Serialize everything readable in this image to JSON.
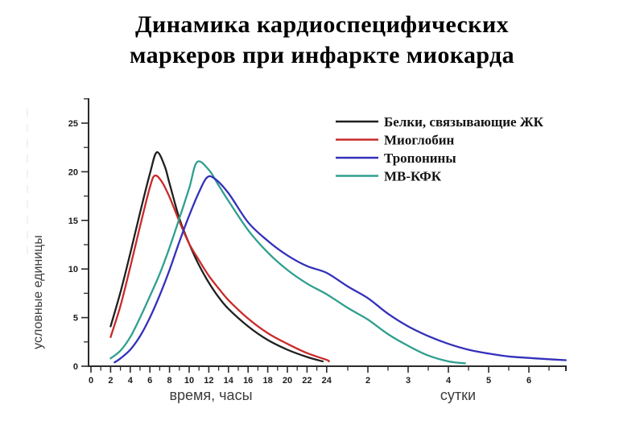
{
  "title": {
    "line1": "Динамика кардиоспецифических",
    "line2": "маркеров при инфаркте миокарда"
  },
  "chart_data": {
    "type": "line",
    "title": "Динамика кардиоспецифических маркеров при инфаркте миокарда",
    "ylabel": "условные единицы",
    "xlabel_hours": "время, часы",
    "xlabel_days": "сутки",
    "ylim": [
      0,
      25
    ],
    "grid": false,
    "legend_position": "top-right",
    "yticks_major": [
      0,
      5,
      10,
      15,
      20,
      25
    ],
    "yticks_minor": [
      2.5,
      7.5,
      12.5,
      17.5,
      22.5,
      27.5
    ],
    "xticks_hours": [
      0,
      2,
      4,
      6,
      8,
      10,
      12,
      14,
      16,
      18,
      20,
      22,
      24
    ],
    "xticks_hours_minor": [
      1,
      3,
      5,
      7,
      9,
      11,
      13,
      15,
      17,
      19,
      21,
      23
    ],
    "xticks_days": [
      2,
      3,
      4,
      5,
      6
    ],
    "xticks_days_minor": [
      1.5,
      2.5,
      3.5,
      4.5,
      5.5,
      6.5
    ],
    "x_unit_note": "points use hours; values past 24 are days expressed in hours (48 = day 2)",
    "series": [
      {
        "id": "fabp",
        "name": "Белки, связывающие ЖК",
        "color": "#1f1f1f",
        "peak": {
          "t_hours": 6.7,
          "value": 22
        },
        "points": [
          [
            2,
            4.1
          ],
          [
            3,
            7.6
          ],
          [
            4,
            11.6
          ],
          [
            5,
            15.8
          ],
          [
            6,
            19.8
          ],
          [
            6.7,
            22.0
          ],
          [
            7.5,
            20.6
          ],
          [
            8,
            18.8
          ],
          [
            9,
            15.2
          ],
          [
            10,
            12.6
          ],
          [
            11,
            10.4
          ],
          [
            12,
            8.6
          ],
          [
            13,
            7.1
          ],
          [
            14,
            5.9
          ],
          [
            16,
            4.1
          ],
          [
            18,
            2.7
          ],
          [
            20,
            1.7
          ],
          [
            22,
            0.95
          ],
          [
            23.6,
            0.5
          ]
        ]
      },
      {
        "id": "myoglobin",
        "name": "Миоглобин",
        "color": "#c92a2a",
        "peak": {
          "t_hours": 6.5,
          "value": 19.6
        },
        "points": [
          [
            2,
            3.0
          ],
          [
            3,
            6.2
          ],
          [
            4,
            10.2
          ],
          [
            5,
            14.4
          ],
          [
            6,
            18.4
          ],
          [
            6.5,
            19.6
          ],
          [
            7.2,
            19.0
          ],
          [
            8,
            17.4
          ],
          [
            9,
            14.9
          ],
          [
            10,
            12.6
          ],
          [
            11,
            10.9
          ],
          [
            12,
            9.3
          ],
          [
            13,
            8.0
          ],
          [
            14,
            6.8
          ],
          [
            16,
            4.9
          ],
          [
            18,
            3.4
          ],
          [
            20,
            2.3
          ],
          [
            22,
            1.35
          ],
          [
            24,
            0.65
          ],
          [
            24.7,
            0.5
          ]
        ]
      },
      {
        "id": "troponin",
        "name": "Тропонины",
        "color": "#3330bb",
        "peak": {
          "t_hours": 11.8,
          "value": 19.4
        },
        "points": [
          [
            2.4,
            0.4
          ],
          [
            3,
            0.8
          ],
          [
            4,
            1.7
          ],
          [
            5,
            3.1
          ],
          [
            6,
            5.0
          ],
          [
            7,
            7.3
          ],
          [
            8,
            9.9
          ],
          [
            9,
            12.8
          ],
          [
            10,
            15.5
          ],
          [
            11,
            17.9
          ],
          [
            11.8,
            19.4
          ],
          [
            12.6,
            19.3
          ],
          [
            14,
            17.8
          ],
          [
            16,
            14.8
          ],
          [
            18,
            12.9
          ],
          [
            20,
            11.4
          ],
          [
            22,
            10.3
          ],
          [
            24,
            9.6
          ],
          [
            36,
            8.2
          ],
          [
            48,
            7.0
          ],
          [
            60,
            5.4
          ],
          [
            72,
            4.1
          ],
          [
            84,
            3.1
          ],
          [
            96,
            2.3
          ],
          [
            108,
            1.7
          ],
          [
            120,
            1.3
          ],
          [
            132,
            1.0
          ],
          [
            144,
            0.85
          ],
          [
            156,
            0.72
          ],
          [
            166,
            0.62
          ]
        ]
      },
      {
        "id": "mb-ck",
        "name": "МВ-КФК",
        "color": "#2f9f8f",
        "peak": {
          "t_hours": 10.8,
          "value": 21
        },
        "points": [
          [
            2,
            0.8
          ],
          [
            3,
            1.6
          ],
          [
            4,
            3.0
          ],
          [
            5,
            5.0
          ],
          [
            6,
            7.2
          ],
          [
            7,
            9.5
          ],
          [
            8,
            12.2
          ],
          [
            9,
            15.2
          ],
          [
            10,
            18.3
          ],
          [
            10.8,
            21.0
          ],
          [
            12,
            20.2
          ],
          [
            13,
            18.6
          ],
          [
            14,
            17.0
          ],
          [
            16,
            14.0
          ],
          [
            18,
            11.7
          ],
          [
            20,
            9.9
          ],
          [
            22,
            8.5
          ],
          [
            24,
            7.4
          ],
          [
            36,
            6.0
          ],
          [
            48,
            4.8
          ],
          [
            60,
            3.3
          ],
          [
            72,
            2.1
          ],
          [
            84,
            1.1
          ],
          [
            96,
            0.5
          ],
          [
            106,
            0.3
          ]
        ]
      }
    ]
  }
}
